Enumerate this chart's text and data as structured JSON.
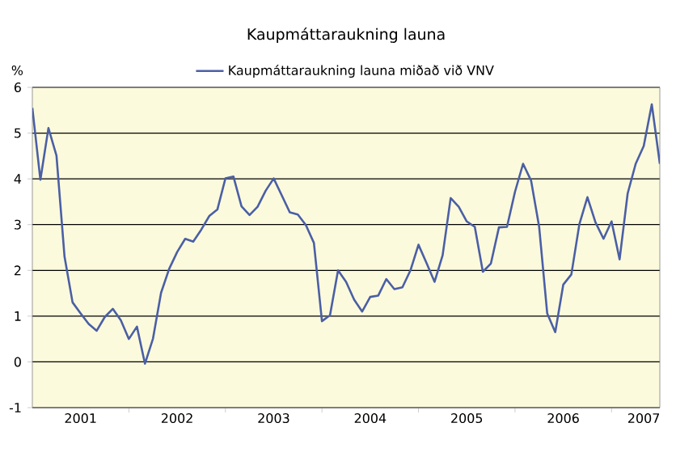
{
  "chart_data": {
    "type": "line",
    "title": "Kaupmáttaraukning launa",
    "ylabel": "%",
    "x": [
      "2001-01",
      "2001-02",
      "2001-03",
      "2001-04",
      "2001-05",
      "2001-06",
      "2001-07",
      "2001-08",
      "2001-09",
      "2001-10",
      "2001-11",
      "2001-12",
      "2002-01",
      "2002-02",
      "2002-03",
      "2002-04",
      "2002-05",
      "2002-06",
      "2002-07",
      "2002-08",
      "2002-09",
      "2002-10",
      "2002-11",
      "2002-12",
      "2003-01",
      "2003-02",
      "2003-03",
      "2003-04",
      "2003-05",
      "2003-06",
      "2003-07",
      "2003-08",
      "2003-09",
      "2003-10",
      "2003-11",
      "2003-12",
      "2004-01",
      "2004-02",
      "2004-03",
      "2004-04",
      "2004-05",
      "2004-06",
      "2004-07",
      "2004-08",
      "2004-09",
      "2004-10",
      "2004-11",
      "2004-12",
      "2005-01",
      "2005-02",
      "2005-03",
      "2005-04",
      "2005-05",
      "2005-06",
      "2005-07",
      "2005-08",
      "2005-09",
      "2005-10",
      "2005-11",
      "2005-12",
      "2006-01",
      "2006-02",
      "2006-03",
      "2006-04",
      "2006-05",
      "2006-06",
      "2006-07",
      "2006-08",
      "2006-09",
      "2006-10",
      "2006-11",
      "2006-12",
      "2007-01",
      "2007-02",
      "2007-03",
      "2007-04",
      "2007-05",
      "2007-06",
      "2007-07"
    ],
    "series": [
      {
        "name": "Kaupmáttaraukning launa miðað við VNV",
        "color": "#4a5fa5",
        "values": [
          5.55,
          3.98,
          5.11,
          4.51,
          2.3,
          1.3,
          1.06,
          0.83,
          0.68,
          0.98,
          1.16,
          0.91,
          0.5,
          0.77,
          -0.04,
          0.51,
          1.51,
          2.03,
          2.4,
          2.69,
          2.63,
          2.89,
          3.19,
          3.33,
          4.01,
          4.05,
          3.4,
          3.21,
          3.39,
          3.74,
          4.01,
          3.64,
          3.27,
          3.22,
          2.99,
          2.6,
          0.89,
          1.02,
          2.0,
          1.75,
          1.36,
          1.1,
          1.42,
          1.45,
          1.81,
          1.59,
          1.63,
          2.0,
          2.56,
          2.16,
          1.75,
          2.33,
          3.58,
          3.39,
          3.07,
          2.95,
          1.97,
          2.15,
          2.94,
          2.95,
          3.72,
          4.33,
          3.96,
          2.95,
          1.06,
          0.65,
          1.69,
          1.91,
          3.01,
          3.6,
          3.05,
          2.69,
          3.07,
          2.24,
          3.68,
          4.33,
          4.72,
          5.63,
          4.33
        ]
      }
    ],
    "xlim": [
      "2001-01",
      "2007-07"
    ],
    "xticks": [
      {
        "value": "2002-01",
        "label": null
      },
      {
        "value": "2003-01",
        "label": null
      },
      {
        "value": "2004-01",
        "label": null
      },
      {
        "value": "2005-01",
        "label": null
      },
      {
        "value": "2006-01",
        "label": null
      },
      {
        "value": "2007-01",
        "label": null
      },
      {
        "value": "2001-07",
        "label": "2001"
      },
      {
        "value": "2002-07",
        "label": "2002"
      },
      {
        "value": "2003-07",
        "label": "2003"
      },
      {
        "value": "2004-07",
        "label": "2004"
      },
      {
        "value": "2005-07",
        "label": "2005"
      },
      {
        "value": "2006-07",
        "label": "2006"
      },
      {
        "value": "2007-05",
        "label": "2007"
      }
    ],
    "ylim": [
      -1,
      6
    ],
    "yticks": [
      -1,
      0,
      1,
      2,
      3,
      4,
      5,
      6
    ],
    "grid": "y",
    "legend": "top",
    "marker": "none",
    "line_style": "solid"
  }
}
